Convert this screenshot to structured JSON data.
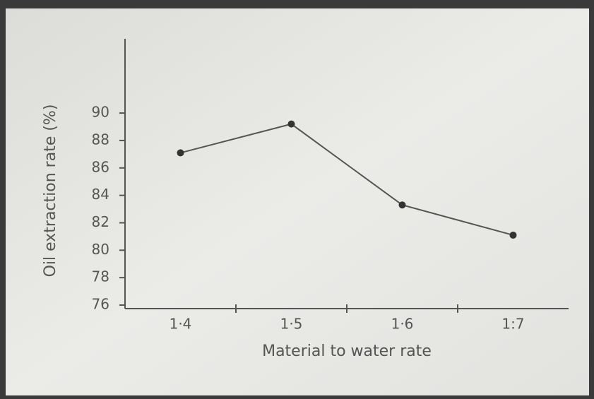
{
  "chart_data": {
    "type": "line",
    "x_label": "Material to water rate",
    "y_label": "Oil extraction rate (%)",
    "categories": [
      "1·4",
      "1·5",
      "1·6",
      "1:7"
    ],
    "values": [
      87.1,
      89.2,
      83.3,
      81.1
    ],
    "color": "#555555",
    "ylim": [
      76,
      95
    ],
    "yticks": [
      76,
      78,
      80,
      82,
      84,
      86,
      88,
      90
    ],
    "grid": false
  }
}
